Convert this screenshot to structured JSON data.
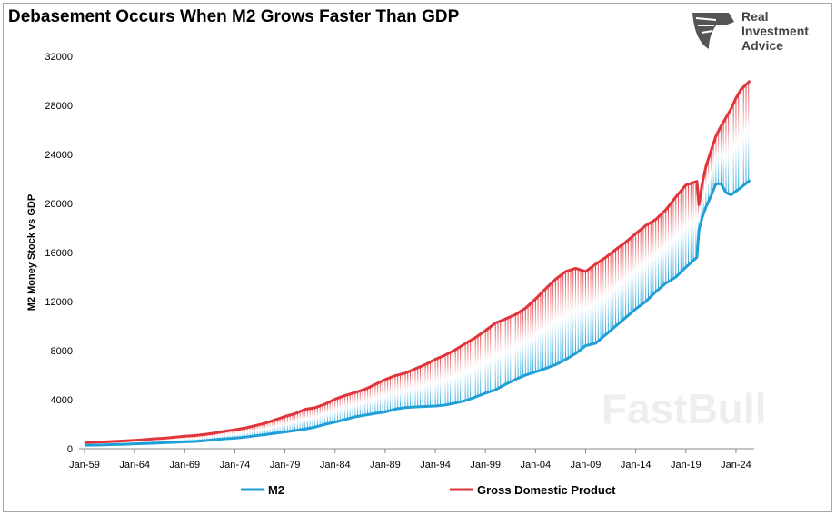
{
  "chart_data": {
    "type": "area",
    "title": "Debasement Occurs When M2 Grows Faster Than GDP",
    "xlabel": "",
    "ylabel": "M2 Money Stock vs GDP",
    "ylim": [
      0,
      32000
    ],
    "yticks": [
      "0",
      "4000",
      "8000",
      "12000",
      "16000",
      "20000",
      "24000",
      "28000",
      "32000"
    ],
    "xticks": [
      "Jan-59",
      "Jan-64",
      "Jan-69",
      "Jan-74",
      "Jan-79",
      "Jan-84",
      "Jan-89",
      "Jan-94",
      "Jan-99",
      "Jan-04",
      "Jan-09",
      "Jan-14",
      "Jan-19",
      "Jan-24"
    ],
    "legend_position": "bottom",
    "grid": false,
    "x": [
      1959,
      1960,
      1961,
      1962,
      1963,
      1964,
      1965,
      1966,
      1967,
      1968,
      1969,
      1970,
      1971,
      1972,
      1973,
      1974,
      1975,
      1976,
      1977,
      1978,
      1979,
      1980,
      1981,
      1982,
      1983,
      1984,
      1985,
      1986,
      1987,
      1988,
      1989,
      1990,
      1991,
      1992,
      1993,
      1994,
      1995,
      1996,
      1997,
      1998,
      1999,
      2000,
      2001,
      2002,
      2003,
      2004,
      2005,
      2006,
      2007,
      2008,
      2009,
      2010,
      2011,
      2012,
      2013,
      2014,
      2015,
      2016,
      2017,
      2018,
      2019,
      2020.1,
      2020.3,
      2020.6,
      2021,
      2021.5,
      2022,
      2022.5,
      2023,
      2023.5,
      2024,
      2024.5,
      2025.4
    ],
    "series": [
      {
        "name": "M2",
        "color": "#1f9fd6",
        "values": [
          290,
          300,
          315,
          340,
          365,
          395,
          425,
          450,
          490,
          530,
          565,
          590,
          660,
          740,
          810,
          860,
          940,
          1050,
          1150,
          1260,
          1370,
          1480,
          1600,
          1760,
          1990,
          2170,
          2380,
          2600,
          2740,
          2880,
          3000,
          3230,
          3350,
          3410,
          3440,
          3480,
          3560,
          3730,
          3920,
          4210,
          4530,
          4800,
          5250,
          5650,
          6000,
          6260,
          6540,
          6850,
          7270,
          7760,
          8400,
          8600,
          9300,
          10000,
          10700,
          11400,
          12000,
          12800,
          13500,
          14000,
          14800,
          15600,
          17800,
          18800,
          19700,
          20600,
          21600,
          21600,
          20900,
          20700,
          21000,
          21300,
          21900
        ]
      },
      {
        "name": "Gross Domestic Product",
        "color": "#e0353a",
        "values": [
          510,
          540,
          560,
          600,
          640,
          690,
          740,
          815,
          860,
          940,
          1020,
          1075,
          1170,
          1280,
          1425,
          1545,
          1685,
          1875,
          2080,
          2350,
          2630,
          2860,
          3210,
          3345,
          3640,
          4040,
          4340,
          4580,
          4855,
          5240,
          5640,
          5960,
          6160,
          6520,
          6860,
          7290,
          7640,
          8070,
          8580,
          9060,
          9630,
          10250,
          10580,
          10940,
          11460,
          12210,
          13040,
          13820,
          14450,
          14710,
          14450,
          15050,
          15600,
          16250,
          16840,
          17550,
          18200,
          18700,
          19480,
          20530,
          21500,
          21800,
          19900,
          21500,
          23000,
          24300,
          25500,
          26300,
          27000,
          27700,
          28600,
          29300,
          30000
        ]
      }
    ]
  },
  "logo": {
    "text": [
      "Real",
      "Investment",
      "Advice"
    ]
  },
  "watermark": "FastBull"
}
